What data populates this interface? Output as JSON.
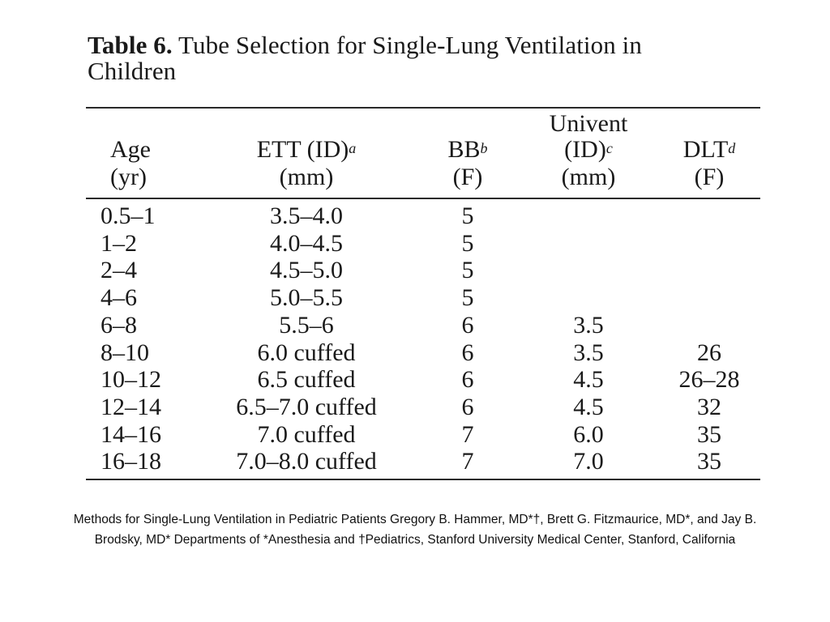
{
  "table": {
    "label": "Table 6.",
    "title_line1": "Tube Selection for Single-Lung Ventilation in",
    "title_line2": "Children",
    "headers": {
      "age": [
        "Age",
        "(yr)"
      ],
      "ett": [
        "ETT (ID)",
        "a",
        "(mm)"
      ],
      "bb": [
        "BB",
        "b",
        "(F)"
      ],
      "univent": [
        "Univent",
        "(ID)",
        "c",
        "(mm)"
      ],
      "dlt": [
        "DLT",
        "d",
        "(F)"
      ]
    },
    "rows": [
      {
        "age": "0.5–1",
        "ett": "3.5–4.0",
        "bb": "5",
        "univent": "",
        "dlt": ""
      },
      {
        "age": "1–2",
        "ett": "4.0–4.5",
        "bb": "5",
        "univent": "",
        "dlt": ""
      },
      {
        "age": "2–4",
        "ett": "4.5–5.0",
        "bb": "5",
        "univent": "",
        "dlt": ""
      },
      {
        "age": "4–6",
        "ett": "5.0–5.5",
        "bb": "5",
        "univent": "",
        "dlt": ""
      },
      {
        "age": "6–8",
        "ett": "5.5–6",
        "bb": "6",
        "univent": "3.5",
        "dlt": ""
      },
      {
        "age": "8–10",
        "ett": "6.0 cuffed",
        "bb": "6",
        "univent": "3.5",
        "dlt": "26"
      },
      {
        "age": "10–12",
        "ett": "6.5 cuffed",
        "bb": "6",
        "univent": "4.5",
        "dlt": "26–28"
      },
      {
        "age": "12–14",
        "ett": "6.5–7.0 cuffed",
        "bb": "6",
        "univent": "4.5",
        "dlt": "32"
      },
      {
        "age": "14–16",
        "ett": "7.0 cuffed",
        "bb": "7",
        "univent": "6.0",
        "dlt": "35"
      },
      {
        "age": "16–18",
        "ett": "7.0–8.0 cuffed",
        "bb": "7",
        "univent": "7.0",
        "dlt": "35"
      }
    ]
  },
  "source_text": "Methods for Single-Lung Ventilation in Pediatric Patients Gregory B. Hammer, MD*†, Brett G. Fitzmaurice, MD*, and Jay B. Brodsky, MD* Departments of *Anesthesia and †Pediatrics, Stanford University Medical Center, Stanford, California"
}
